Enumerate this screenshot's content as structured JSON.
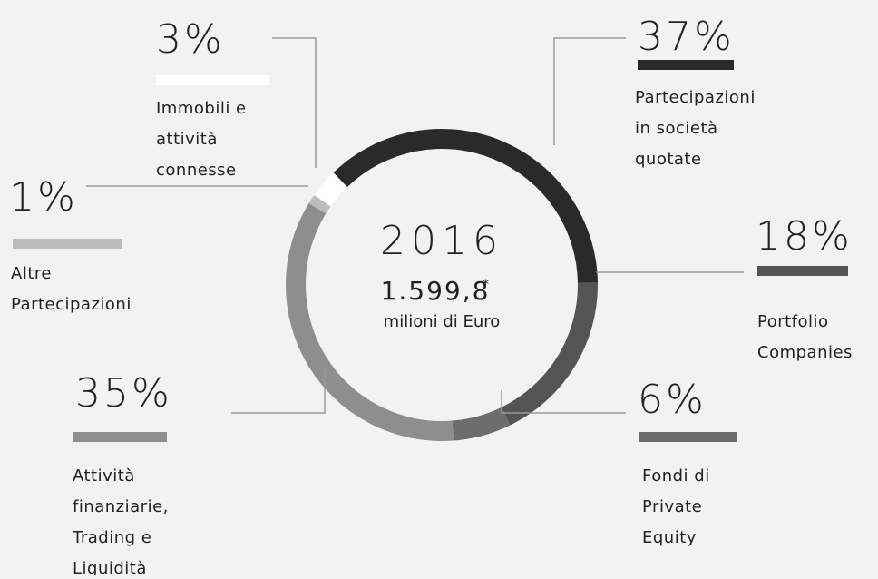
{
  "chart_data": {
    "type": "donut",
    "categories": [
      [
        "Partecipazioni",
        "in  società",
        "quotate"
      ],
      [
        "Portfolio",
        "Companies"
      ],
      [
        "Fondi di",
        "Private",
        "Equity"
      ],
      [
        "Attività",
        "finanziarie,",
        "Trading e",
        "Liquidità"
      ],
      [
        "Altre",
        "Partecipazioni"
      ],
      [
        "Immobili e",
        "attività",
        "connesse"
      ]
    ],
    "values": [
      37,
      18,
      6,
      35,
      1,
      3
    ],
    "value_labels": [
      "37%",
      "18%",
      "6%",
      "35%",
      "1%",
      "3%"
    ],
    "colors": [
      "#2a2a2a",
      "#545454",
      "#6d6d6d",
      "#8e8e8e",
      "#bcbcbc",
      "#ffffff"
    ],
    "center": {
      "year": "2016",
      "total": "1.599,8",
      "note": "*",
      "unit": "milioni di Euro"
    }
  }
}
